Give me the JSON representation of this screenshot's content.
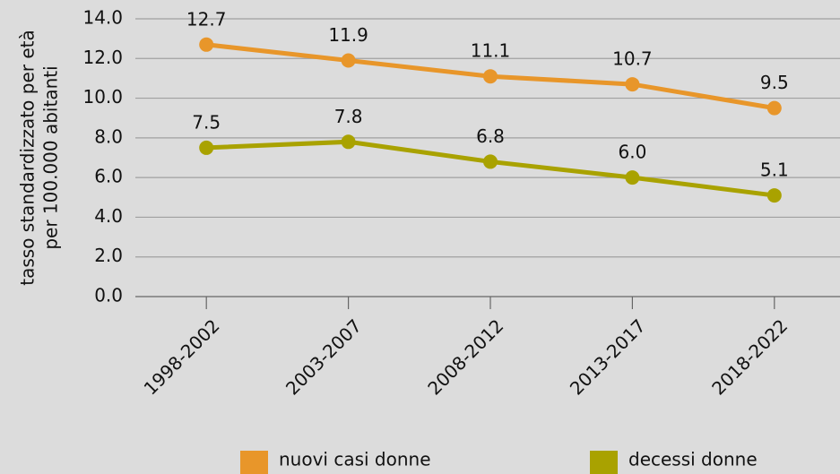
{
  "chart_data": {
    "type": "line",
    "ylabel": [
      "tasso standardizzato per età",
      "per 100.000 abitanti"
    ],
    "categories": [
      "1998-2002",
      "2003-2007",
      "2008-2012",
      "2013-2017",
      "2018-2022"
    ],
    "series": [
      {
        "name": "nuovi casi donne",
        "color": "#e8962a",
        "values": [
          12.7,
          11.9,
          11.1,
          10.7,
          9.5
        ],
        "value_labels": [
          "12.7",
          "11.9",
          "11.1",
          "10.7",
          "9.5"
        ]
      },
      {
        "name": "decessi donne",
        "color": "#a9a200",
        "values": [
          7.5,
          7.8,
          6.8,
          6.0,
          5.1
        ],
        "value_labels": [
          "7.5",
          "7.8",
          "6.8",
          "6.0",
          "5.1"
        ]
      }
    ],
    "ylim": [
      0,
      14
    ],
    "yticks": [
      {
        "value": 0,
        "label": "0.0"
      },
      {
        "value": 2,
        "label": "2.0"
      },
      {
        "value": 4,
        "label": "4.0"
      },
      {
        "value": 6,
        "label": "6.0"
      },
      {
        "value": 8,
        "label": "8.0"
      },
      {
        "value": 10,
        "label": "10.0"
      },
      {
        "value": 12,
        "label": "12.0"
      },
      {
        "value": 14,
        "label": "14.0"
      }
    ],
    "grid": true
  }
}
